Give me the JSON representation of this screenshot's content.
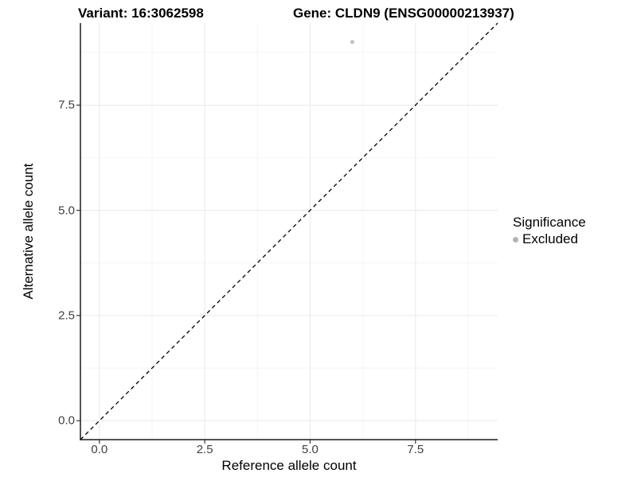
{
  "chart_data": {
    "type": "scatter",
    "title_left": "Variant: 16:3062598",
    "title_right": "Gene: CLDN9 (ENSG00000213937)",
    "xlabel": "Reference allele count",
    "ylabel": "Alternative allele count",
    "xlim": [
      -0.45,
      9.45
    ],
    "ylim": [
      -0.45,
      9.45
    ],
    "xticks": [
      0.0,
      2.5,
      5.0,
      7.5
    ],
    "yticks": [
      0.0,
      2.5,
      5.0,
      7.5
    ],
    "minor_tick_offset": 1.25,
    "grid": true,
    "identity_line": {
      "type": "y=x",
      "style": "dashed"
    },
    "points": [
      {
        "x": 6.0,
        "y": 9.0,
        "series": "Excluded"
      }
    ],
    "legend": {
      "title": "Significance",
      "position": "right",
      "entries": [
        {
          "label": "Excluded",
          "color": "#b3b3b3",
          "marker": "circle"
        }
      ]
    },
    "colors": {
      "point": "#c2c2c2",
      "grid_major": "#e9e9e9",
      "grid_minor": "#f4f4f4",
      "axis_line": "#1a1a1a",
      "identity_line": "#000000",
      "tick_mark": "#333333"
    }
  }
}
